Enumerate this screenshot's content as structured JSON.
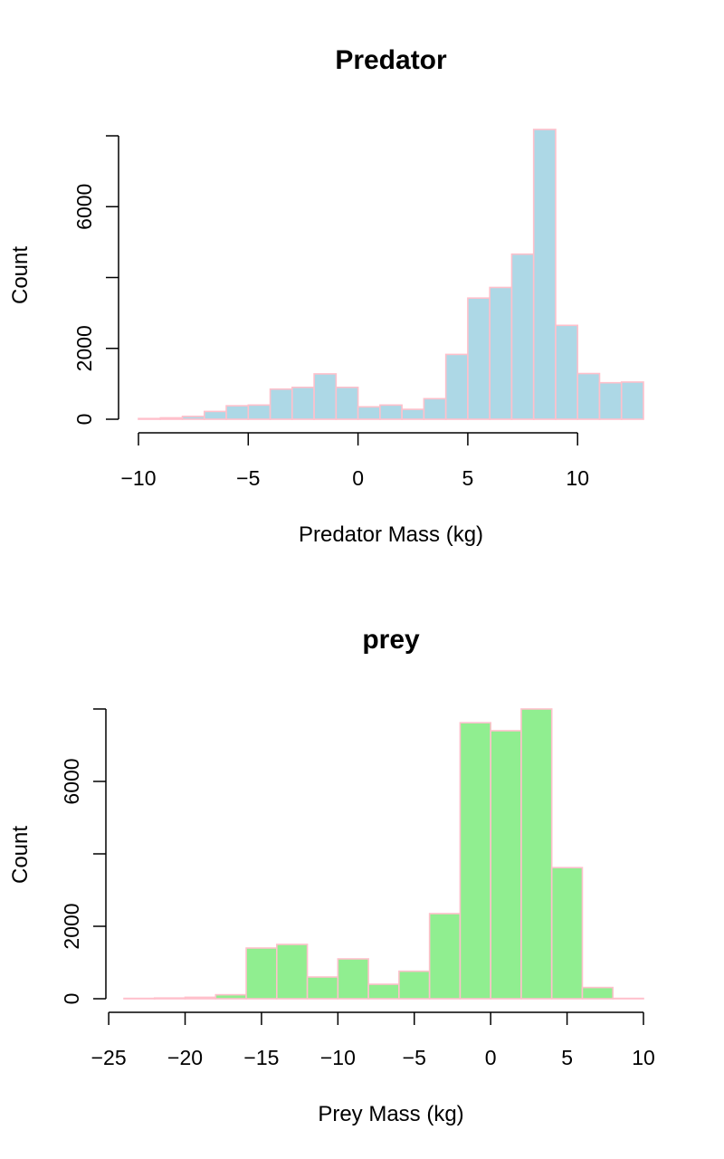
{
  "chart_data": [
    {
      "type": "bar",
      "title": "Predator",
      "xlabel": "Predator Mass (kg)",
      "ylabel": "Count",
      "bin_width": 1,
      "bin_edges_start": -10,
      "values": [
        20,
        40,
        80,
        220,
        380,
        400,
        850,
        900,
        1280,
        900,
        350,
        400,
        280,
        580,
        1830,
        3420,
        3720,
        4660,
        8180,
        2650,
        1290,
        1030,
        1050
      ],
      "xlim": [
        -10,
        13
      ],
      "ylim": [
        0,
        8000
      ],
      "x_ticks": [
        -10,
        -5,
        0,
        5,
        10
      ],
      "y_ticks": [
        0,
        2000,
        6000
      ],
      "y_tick_labels": [
        "0",
        "2000",
        "6000"
      ],
      "fill": "#add8e6",
      "border": "#ffc0cb"
    },
    {
      "type": "bar",
      "title": "prey",
      "xlabel": "Prey Mass (kg)",
      "ylabel": "Count",
      "bin_width": 2,
      "bin_edges_start": -24,
      "values": [
        10,
        20,
        40,
        110,
        1400,
        1500,
        600,
        1100,
        400,
        760,
        2350,
        7620,
        7400,
        8000,
        3620,
        310,
        10
      ],
      "xlim": [
        -24,
        10
      ],
      "ylim": [
        0,
        8000
      ],
      "x_ticks": [
        -25,
        -20,
        -15,
        -10,
        -5,
        0,
        5,
        10
      ],
      "y_ticks": [
        0,
        2000,
        6000
      ],
      "y_tick_labels": [
        "0",
        "2000",
        "6000"
      ],
      "fill": "#90ee90",
      "border": "#ffc0cb"
    }
  ]
}
